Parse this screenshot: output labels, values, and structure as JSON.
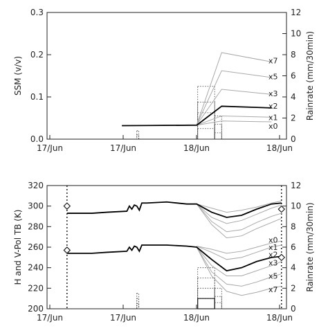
{
  "chart_data": [
    {
      "type": "line",
      "id": "top",
      "ylabel": "SSM (v/v)",
      "ylabel_right": "Rainrate (mm/30min)",
      "x_tick_labels": [
        "17/Jun",
        "17/Jun",
        "18/Jun",
        "18/Jun"
      ],
      "ylim": [
        0,
        0.3
      ],
      "y_ticks": [
        "0.0",
        "0.1",
        "0.2",
        "0.3"
      ],
      "ylim_right": [
        0,
        12
      ],
      "y_ticks_right": [
        "0",
        "2",
        "4",
        "6",
        "8",
        "10",
        "12"
      ],
      "x_range": [
        0,
        48
      ],
      "control": {
        "name": "x2",
        "x": [
          15,
          30,
          35,
          45
        ],
        "y": [
          0.032,
          0.033,
          0.078,
          0.074
        ]
      },
      "series": [
        {
          "name": "x7",
          "x": [
            15,
            30,
            35,
            45
          ],
          "y": [
            0.032,
            0.034,
            0.205,
            0.183
          ]
        },
        {
          "name": "x5",
          "x": [
            15,
            30,
            35,
            45
          ],
          "y": [
            0.032,
            0.034,
            0.162,
            0.146
          ]
        },
        {
          "name": "x3",
          "x": [
            15,
            30,
            35,
            45
          ],
          "y": [
            0.032,
            0.034,
            0.118,
            0.106
          ]
        },
        {
          "name": "x1",
          "x": [
            15,
            30,
            35,
            45
          ],
          "y": [
            0.032,
            0.033,
            0.055,
            0.052
          ]
        },
        {
          "name": "x0",
          "x": [
            15,
            30,
            35,
            45
          ],
          "y": [
            0.032,
            0.033,
            0.043,
            0.041
          ]
        }
      ],
      "series_tags": [
        {
          "text": "x7",
          "y": 0.186
        },
        {
          "text": "x5",
          "y": 0.148
        },
        {
          "text": "x3",
          "y": 0.108
        },
        {
          "text": "x2",
          "y": 0.079
        },
        {
          "text": "x1",
          "y": 0.052
        },
        {
          "text": "x0",
          "y": 0.031
        }
      ],
      "rain_bars": [
        {
          "x0": 18.0,
          "x1": 18.4,
          "levels": [
            0.4,
            0.8
          ]
        },
        {
          "x0": 30.2,
          "x1": 33.6,
          "levels": [
            1.0,
            2.5,
            3.5,
            5.0
          ]
        },
        {
          "x0": 33.6,
          "x1": 35.0,
          "levels": [
            0.6,
            1.4,
            2.2
          ]
        }
      ]
    },
    {
      "type": "line",
      "id": "bottom",
      "ylabel": "H and V-Pol TB (K)",
      "ylabel_right": "Rainrate (mm/30min)",
      "x_tick_labels": [
        "17/Jun",
        "17/Jun",
        "18/Jun",
        "18/Jun"
      ],
      "ylim": [
        200,
        320
      ],
      "y_ticks": [
        "200",
        "220",
        "240",
        "260",
        "280",
        "300",
        "320"
      ],
      "ylim_right": [
        0,
        12
      ],
      "y_ticks_right": [
        "0",
        "2",
        "4",
        "6",
        "8",
        "10",
        "12"
      ],
      "x_range": [
        0,
        48
      ],
      "v_control": {
        "x": [
          4,
          9,
          12,
          16,
          16.5,
          17,
          17.5,
          18,
          18.5,
          19,
          20,
          24,
          28,
          30,
          33,
          36,
          39,
          42,
          45,
          47
        ],
        "y": [
          293,
          293,
          294,
          295,
          300,
          297,
          301,
          300,
          296,
          303,
          303,
          304,
          302,
          302,
          294,
          289,
          291,
          297,
          302,
          303
        ]
      },
      "v_series": [
        {
          "x": [
            30,
            33,
            36,
            39,
            42,
            45,
            47
          ],
          "y": [
            302,
            298,
            294,
            296,
            299,
            303,
            305
          ]
        },
        {
          "x": [
            30,
            33,
            36,
            39,
            42,
            45,
            47
          ],
          "y": [
            302,
            289,
            283,
            286,
            292,
            298,
            301
          ]
        },
        {
          "x": [
            30,
            33,
            36,
            39,
            42,
            45,
            47
          ],
          "y": [
            302,
            285,
            275,
            277,
            284,
            290,
            293
          ]
        },
        {
          "x": [
            30,
            33,
            36,
            39,
            42,
            45,
            47
          ],
          "y": [
            302,
            282,
            269,
            271,
            278,
            284,
            288
          ]
        }
      ],
      "h_control": {
        "x": [
          4,
          9,
          12,
          16,
          16.5,
          17,
          17.5,
          18,
          18.5,
          19,
          20,
          24,
          28,
          30,
          33,
          36,
          39,
          42,
          45,
          47
        ],
        "y": [
          254,
          254,
          255,
          256,
          260,
          257,
          261,
          260,
          256,
          262,
          262,
          262,
          261,
          260,
          248,
          237,
          240,
          246,
          250,
          251
        ]
      },
      "h_series": [
        {
          "name": "x0",
          "x": [
            30,
            33,
            36,
            39,
            42,
            45,
            47
          ],
          "y": [
            261,
            258,
            254,
            256,
            260,
            264,
            266
          ]
        },
        {
          "name": "x1",
          "x": [
            30,
            33,
            36,
            39,
            42,
            45,
            47
          ],
          "y": [
            261,
            255,
            248,
            250,
            255,
            260,
            262
          ]
        },
        {
          "name": "x3",
          "x": [
            30,
            33,
            36,
            39,
            42,
            45,
            47
          ],
          "y": [
            260,
            242,
            232,
            232,
            237,
            242,
            246
          ]
        },
        {
          "name": "x5",
          "x": [
            30,
            33,
            36,
            39,
            42,
            45,
            47
          ],
          "y": [
            260,
            236,
            224,
            222,
            226,
            231,
            234
          ]
        },
        {
          "name": "x7",
          "x": [
            30,
            33,
            36,
            39,
            42,
            45,
            47
          ],
          "y": [
            260,
            232,
            217,
            213,
            216,
            220,
            222
          ]
        }
      ],
      "series_tags": [
        {
          "text": "x0",
          "y": 267
        },
        {
          "text": "x1",
          "y": 260
        },
        {
          "text": "x2",
          "y": 253
        },
        {
          "text": "x3",
          "y": 245
        },
        {
          "text": "x5",
          "y": 232
        },
        {
          "text": "x7",
          "y": 219
        }
      ],
      "markers": [
        {
          "x": 4,
          "y": 300
        },
        {
          "x": 4,
          "y": 257
        },
        {
          "x": 47,
          "y": 297
        },
        {
          "x": 47,
          "y": 250
        }
      ],
      "dotted_verticals": [
        4,
        47
      ],
      "rain_bars": [
        {
          "x0": 18.0,
          "x1": 18.4,
          "levels": [
            0.5,
            1.0,
            1.5
          ]
        },
        {
          "x0": 30.2,
          "x1": 33.6,
          "levels": [
            1.0,
            2.0,
            3.0,
            4.0
          ]
        },
        {
          "x0": 33.6,
          "x1": 35.0,
          "levels": [
            0.6,
            1.2,
            2.0
          ]
        }
      ],
      "rain_solid": {
        "x0": 30.2,
        "x1": 33.6,
        "level": 1.0
      }
    }
  ]
}
